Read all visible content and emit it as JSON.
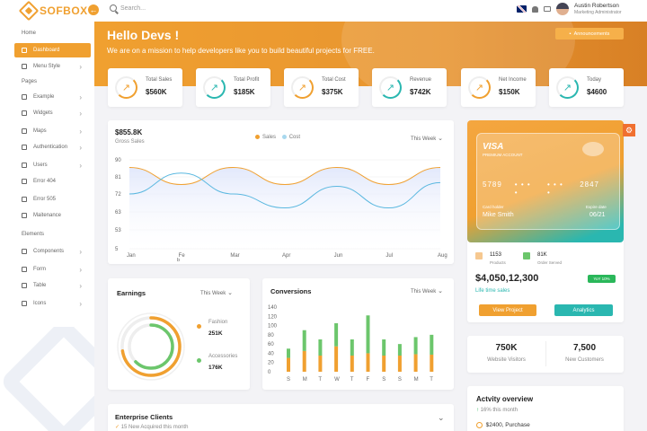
{
  "app": {
    "logo_text": "SOFBOX",
    "search_placeholder": "Search..."
  },
  "user": {
    "name": "Austin Robertson",
    "role": "Marketing Administrator"
  },
  "sidebar": {
    "sections": {
      "home": "Home",
      "pages": "Pages",
      "elements": "Elements"
    },
    "items": [
      {
        "label": "Dashboard",
        "active": true,
        "chevron": false
      },
      {
        "label": "Menu Style",
        "chevron": true
      },
      {
        "label": "Example",
        "chevron": true
      },
      {
        "label": "Widgets",
        "chevron": true
      },
      {
        "label": "Maps",
        "chevron": true
      },
      {
        "label": "Authentication",
        "chevron": true
      },
      {
        "label": "Users",
        "chevron": true
      },
      {
        "label": "Error 404",
        "chevron": false
      },
      {
        "label": "Error 505",
        "chevron": false
      },
      {
        "label": "Maitenance",
        "chevron": false
      },
      {
        "label": "Components",
        "chevron": true
      },
      {
        "label": "Form",
        "chevron": true
      },
      {
        "label": "Table",
        "chevron": true
      },
      {
        "label": "Icons",
        "chevron": true
      }
    ]
  },
  "hero": {
    "title": "Hello Devs !",
    "subtitle": "We are on a mission to help developers like you to build beautiful projects for FREE.",
    "button": "Announcements"
  },
  "stats": [
    {
      "label": "Total Sales",
      "value": "$560K",
      "color": "#f0a030"
    },
    {
      "label": "Total Profit",
      "value": "$185K",
      "color": "#2ab7b0"
    },
    {
      "label": "Total Cost",
      "value": "$375K",
      "color": "#f0a030"
    },
    {
      "label": "Revenue",
      "value": "$742K",
      "color": "#2ab7b0"
    },
    {
      "label": "Net Income",
      "value": "$150K",
      "color": "#f0a030"
    },
    {
      "label": "Today",
      "value": "$4600",
      "color": "#2ab7b0"
    }
  ],
  "sales_card": {
    "amount": "$855.8K",
    "subtitle": "Gross Sales",
    "period": "This Week",
    "legend": [
      "Sales",
      "Cost"
    ],
    "x_axis_extra": "b"
  },
  "earnings": {
    "title": "Earnings",
    "period": "This Week",
    "items": [
      {
        "label": "Fashion",
        "value": "251K",
        "color": "#f0a030"
      },
      {
        "label": "Accessories",
        "value": "176K",
        "color": "#6cc66c"
      }
    ]
  },
  "conversions": {
    "title": "Conversions",
    "period": "This Week"
  },
  "visa": {
    "brand": "VISA",
    "sub": "PREMIUM ACCOUNT",
    "num1": "5789",
    "dots1": "• • • •",
    "dots2": "• • • •",
    "num4": "2847",
    "holder_label": "Card holder",
    "holder": "Mike Smith",
    "expire_label": "Expire date",
    "expire": "06/21"
  },
  "card_stats": [
    {
      "value": "1153",
      "label": "Products"
    },
    {
      "value": "81K",
      "label": "Order Served"
    }
  ],
  "balance": {
    "amount": "$4,050,12,300",
    "badge": "YoY 10%",
    "caption": "Life time sales",
    "btn_view": "View Project",
    "btn_analytics": "Analytics"
  },
  "visitors": [
    {
      "value": "750K",
      "label": "Website Visitors"
    },
    {
      "value": "7,500",
      "label": "New Customers"
    }
  ],
  "activity": {
    "title": "Actvity overview",
    "growth": "16% this month",
    "item": "$2400, Purchase"
  },
  "enterprise": {
    "title": "Enterprise Clients",
    "sub": "15 New Acquired this month"
  },
  "chart_data": [
    {
      "type": "line",
      "title": "",
      "x": [
        "Jan",
        "Fe",
        "Mar",
        "Apr",
        "Jun",
        "Jul",
        "Aug"
      ],
      "ylim": [
        5,
        90
      ],
      "yticks": [
        90,
        81,
        72,
        63,
        53,
        5
      ],
      "series": [
        {
          "name": "Sales",
          "color": "#f0a030",
          "values": [
            86,
            77,
            86,
            77,
            86,
            77,
            86
          ]
        },
        {
          "name": "Cost",
          "color": "#5bb8e0",
          "values": [
            72,
            83,
            72,
            65,
            76,
            65,
            78
          ]
        }
      ]
    },
    {
      "type": "bar",
      "title": "",
      "categories": [
        "S",
        "M",
        "T",
        "W",
        "T",
        "F",
        "S",
        "S",
        "M",
        "T"
      ],
      "ylim": [
        0,
        140
      ],
      "yticks": [
        140,
        120,
        100,
        80,
        60,
        40,
        20,
        0
      ],
      "series": [
        {
          "name": "base",
          "color": "#f0a030",
          "values": [
            30,
            45,
            35,
            55,
            35,
            40,
            35,
            35,
            38,
            37
          ]
        },
        {
          "name": "top",
          "color": "#6cc66c",
          "values": [
            20,
            45,
            35,
            50,
            35,
            82,
            35,
            25,
            37,
            43
          ]
        }
      ]
    },
    {
      "type": "pie",
      "title": "",
      "categories": [
        "Fashion",
        "Accessories"
      ],
      "values": [
        251,
        176
      ]
    }
  ]
}
